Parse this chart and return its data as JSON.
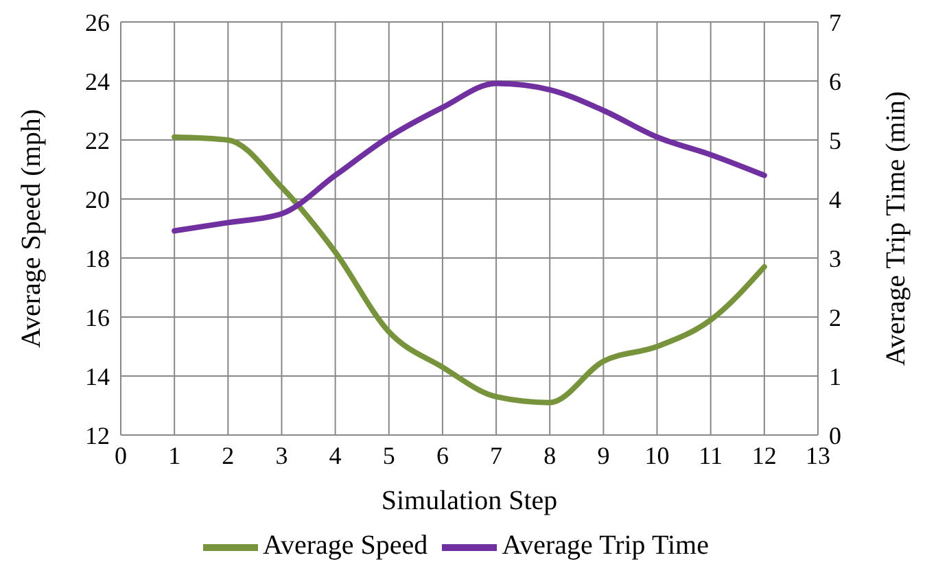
{
  "chart_data": {
    "type": "line",
    "xlabel": "Simulation Step",
    "ylabel": "Average Speed (mph)",
    "y2label": "Average Trip Time (min)",
    "x": [
      1,
      2,
      3,
      4,
      5,
      6,
      7,
      8,
      9,
      10,
      11,
      12
    ],
    "series": [
      {
        "name": "Average Speed",
        "color": "#77933c",
        "values": [
          22.1,
          22.0,
          20.4,
          18.2,
          15.5,
          14.3,
          13.3,
          13.1,
          14.5,
          15.0,
          15.9,
          17.7
        ]
      },
      {
        "name": "Average Trip Time",
        "color": "#7030a0",
        "axis": "y2",
        "values": [
          3.46,
          3.6,
          3.75,
          4.4,
          5.05,
          5.55,
          5.96,
          5.85,
          5.5,
          5.05,
          4.75,
          4.4
        ]
      }
    ],
    "xlim": [
      0,
      13
    ],
    "xticks": [
      0,
      1,
      2,
      3,
      4,
      5,
      6,
      7,
      8,
      9,
      10,
      11,
      12,
      13
    ],
    "ylim": [
      12,
      26
    ],
    "yticks": [
      12,
      14,
      16,
      18,
      20,
      22,
      24,
      26
    ],
    "y2lim": [
      0,
      7
    ],
    "y2ticks": [
      0,
      1,
      2,
      3,
      4,
      5,
      6,
      7
    ],
    "grid": true,
    "legend": "bottom",
    "marker": "none",
    "line_style": "solid"
  }
}
